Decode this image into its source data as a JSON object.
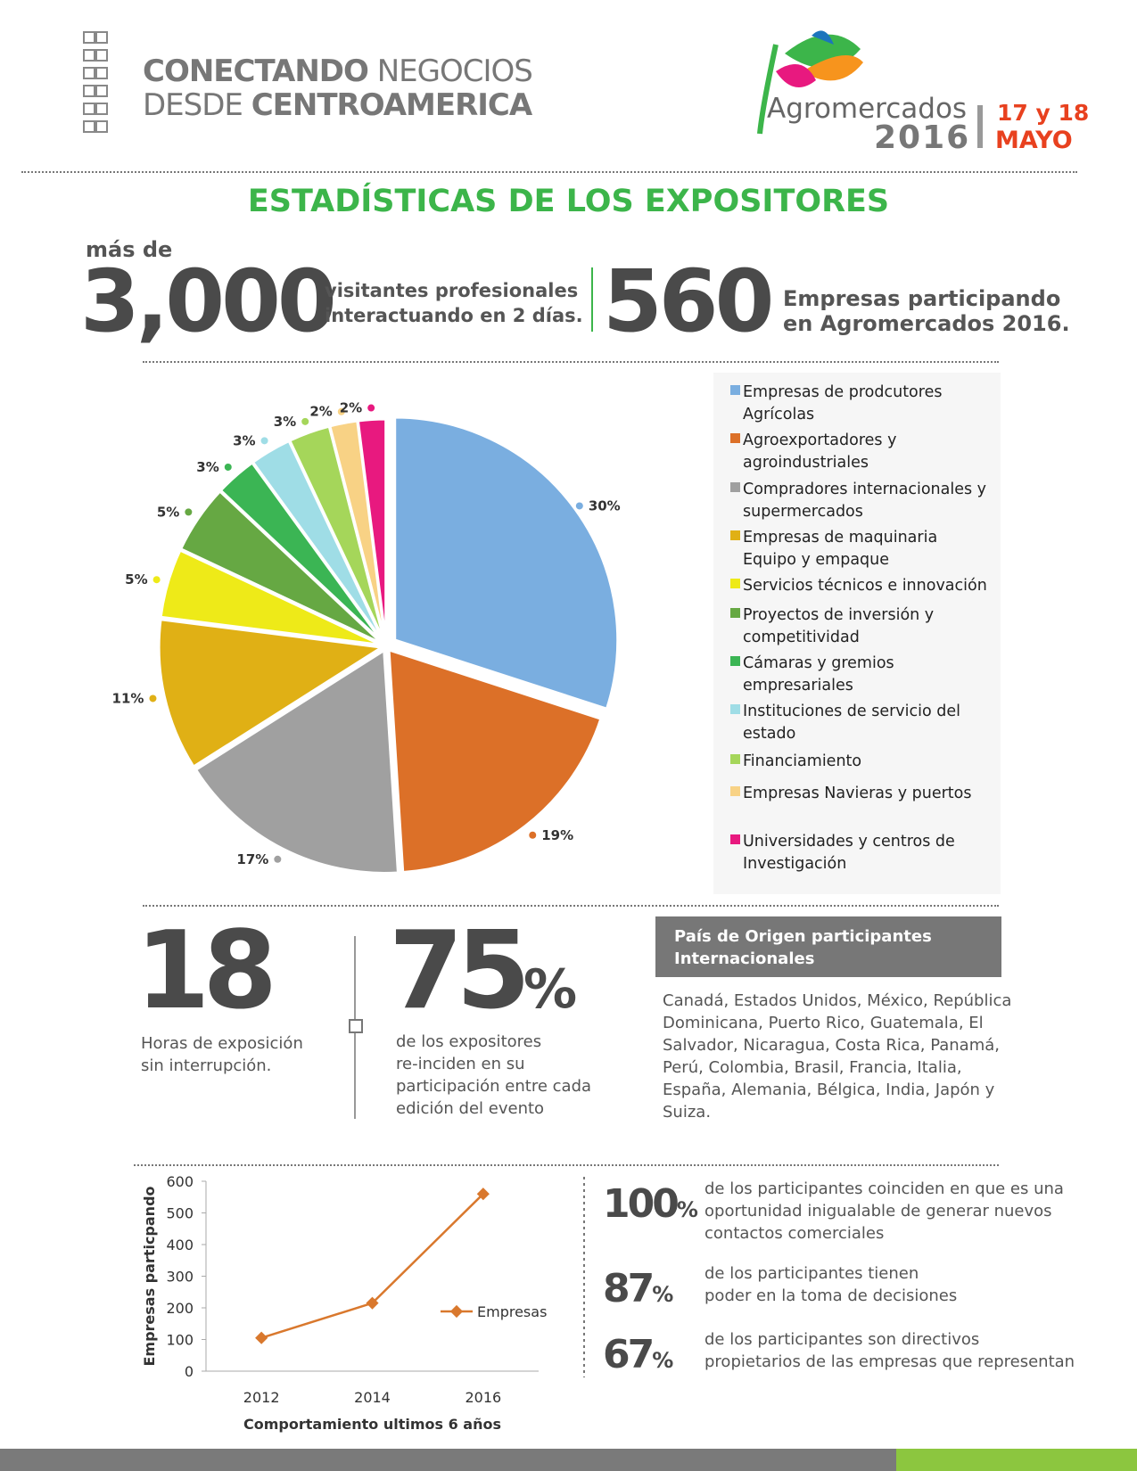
{
  "header": {
    "tagline": [
      [
        "CONECTANDO",
        " NEGOCIOS"
      ],
      [
        "DESDE ",
        "CENTROAMERICA"
      ]
    ],
    "logo_name": "Agromercados",
    "logo_year": "2016",
    "date_days": "17 y 18",
    "date_month": "MAYO"
  },
  "title": "ESTADÍSTICAS DE LOS EXPOSITORES",
  "visitors": {
    "prefix": "más de",
    "number": "3,000",
    "text": [
      "visitantes profesionales",
      "interactuando en 2 días."
    ]
  },
  "companies": {
    "number": "560",
    "text": [
      "Empresas participando",
      "en Agromercados 2016."
    ]
  },
  "chart_data": [
    {
      "type": "pie",
      "series": [
        {
          "name": "Empresas de prodcutores Agrícolas",
          "color": "#7aaee0"
        },
        {
          "name": "Agroexportadores y agroindustriales",
          "color": "#dc7028"
        },
        {
          "name": "Compradores internacionales y supermercados",
          "color": "#a0a0a0"
        },
        {
          "name": "Empresas de maquinaria Equipo y empaque",
          "color": "#e0b015"
        },
        {
          "name": "Servicios técnicos e innovación",
          "color": "#eeea18"
        },
        {
          "name": "Proyectos de inversión y competitividad",
          "color": "#66a843"
        },
        {
          "name": "Cámaras y gremios empresariales",
          "color": "#3bb554"
        },
        {
          "name": "Instituciones de servicio del estado",
          "color": "#9fdde6"
        },
        {
          "name": "Financiamiento",
          "color": "#a5d65a"
        },
        {
          "name": "Empresas Navieras y puertos",
          "color": "#f8d285"
        },
        {
          "name": "Universidades y centros de Investigación",
          "color": "#e8197f"
        }
      ],
      "values": [
        30,
        19,
        17,
        11,
        5,
        5,
        3,
        3,
        3,
        2,
        2
      ],
      "value_labels": [
        "30%",
        "19%",
        "17%",
        "11%",
        "5%",
        "5%",
        "3%",
        "3%",
        "3%",
        "2%",
        "2%"
      ]
    },
    {
      "type": "line",
      "categories": [
        "2012",
        "2014",
        "2016"
      ],
      "series": [
        {
          "name": "Empresas",
          "color": "#d9782d",
          "values": [
            105,
            215,
            560
          ]
        }
      ],
      "ylim": [
        0,
        600
      ],
      "yticks": [
        0,
        100,
        200,
        300,
        400,
        500,
        600
      ],
      "y_label": "Empresas particpando",
      "x_label": "Comportamiento ultimos 6 años"
    }
  ],
  "hours": {
    "number": "18",
    "text": [
      "Horas de exposición",
      "sin interrupción."
    ]
  },
  "repeat": {
    "number": "75",
    "unit": "%",
    "text": [
      "de los expositores",
      "re-inciden en su",
      "participación entre cada",
      "edición del evento"
    ]
  },
  "origin": {
    "title": [
      "País de Origen participantes",
      "Internacionales"
    ],
    "text": [
      "Canadá, Estados Unidos, México, República",
      "Dominicana, Puerto Rico, Guatemala, El",
      "Salvador, Nicaragua, Costa Rica, Panamá,",
      "Perú, Colombia, Brasil, Francia, Italia,",
      "España, Alemania, Bélgica, India, Japón y",
      "Suiza."
    ]
  },
  "participants": [
    {
      "number": "100",
      "unit": "%",
      "text": [
        "de los participantes coinciden en que es una",
        "oportunidad inigualable de generar nuevos",
        "contactos comerciales"
      ]
    },
    {
      "number": "87",
      "unit": "%",
      "text": [
        "de los participantes tienen",
        "poder en la toma de decisiones"
      ]
    },
    {
      "number": "67",
      "unit": "%",
      "text": [
        "de los participantes son directivos",
        "propietarios de las empresas que representan"
      ]
    }
  ]
}
